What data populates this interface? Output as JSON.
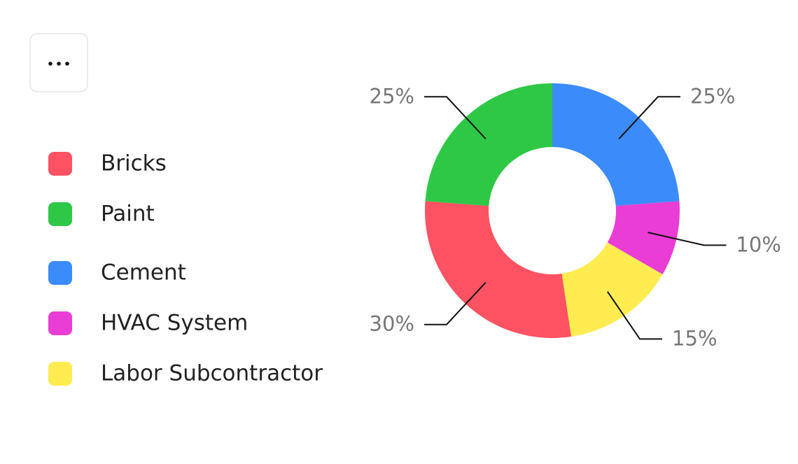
{
  "chart_data": {
    "type": "donut",
    "categories": [
      "Bricks",
      "Paint",
      "Cement",
      "HVAC System",
      "Labor Subcontractor"
    ],
    "values": [
      30,
      25,
      25,
      10,
      15
    ],
    "value_labels": [
      "30%",
      "25%",
      "25%",
      "10%",
      "15%"
    ],
    "colors": [
      "#ff5262",
      "#2ec846",
      "#3b8bfa",
      "#ea3dd5",
      "#ffec50"
    ]
  }
}
